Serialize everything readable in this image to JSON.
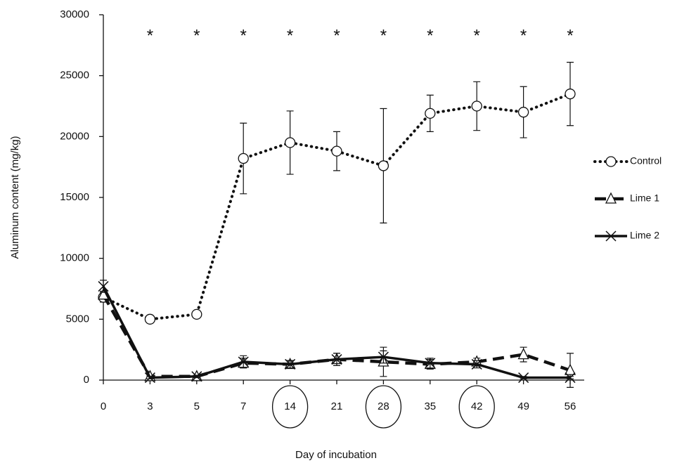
{
  "chart_data": {
    "type": "line",
    "x_label": "Day of incubation",
    "y_label": "Aluminum content (mg/kg)",
    "categories": [
      "0",
      "3",
      "5",
      "7",
      "14",
      "21",
      "28",
      "35",
      "42",
      "49",
      "56"
    ],
    "circled": [
      false,
      false,
      false,
      false,
      true,
      false,
      true,
      false,
      true,
      false,
      false
    ],
    "annotations": [
      null,
      "*",
      "*",
      "*",
      "*",
      "*",
      "*",
      "*",
      "*",
      "*",
      "*"
    ],
    "ylim": [
      0,
      30000
    ],
    "yticks": [
      0,
      5000,
      10000,
      15000,
      20000,
      25000,
      30000
    ],
    "grid": false,
    "legend": "right",
    "series": [
      {
        "name": "Control",
        "color": "#111111",
        "line": "dotted",
        "marker": "circle",
        "values": [
          6800,
          5000,
          5400,
          18200,
          19500,
          18800,
          17600,
          21900,
          22500,
          22000,
          23500
        ],
        "errors": [
          400,
          300,
          100,
          2900,
          2600,
          1600,
          4700,
          1500,
          2000,
          2100,
          2600
        ]
      },
      {
        "name": "Lime 1",
        "color": "#111111",
        "line": "dashed",
        "marker": "triangle",
        "values": [
          7000,
          300,
          300,
          1400,
          1300,
          1700,
          1500,
          1300,
          1500,
          2100,
          800
        ],
        "errors": [
          300,
          100,
          100,
          400,
          300,
          500,
          1200,
          400,
          300,
          600,
          1400
        ]
      },
      {
        "name": "Lime 2",
        "color": "#111111",
        "line": "solid",
        "marker": "cross",
        "values": [
          7700,
          200,
          300,
          1500,
          1300,
          1700,
          1900,
          1400,
          1300,
          200,
          200
        ],
        "errors": [
          500,
          100,
          100,
          500,
          300,
          500,
          500,
          400,
          300,
          100,
          100
        ]
      }
    ]
  }
}
